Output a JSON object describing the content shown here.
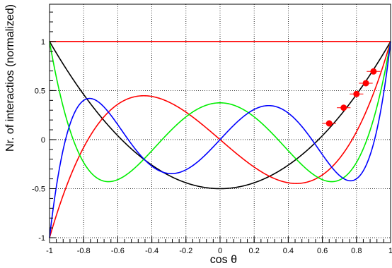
{
  "chart_data": {
    "type": "line",
    "title": "",
    "xlabel": "cos θ",
    "ylabel": "Nr. of interactios (normalized)",
    "xlim": [
      -1,
      1
    ],
    "ylim": [
      -1.05,
      1.38
    ],
    "grid": true,
    "x_ticks": [
      "-1",
      "-0.8",
      "-0.6",
      "-0.4",
      "-0.2",
      "0",
      "0.2",
      "0.4",
      "0.6",
      "0.8",
      "1"
    ],
    "y_ticks": [
      "-1",
      "-0.5",
      "0",
      "0.5",
      "1"
    ],
    "curves": [
      {
        "legendre_order": 0,
        "color": "#ff0000"
      },
      {
        "legendre_order": 2,
        "color": "#000000"
      },
      {
        "legendre_order": 3,
        "color": "#ff0000"
      },
      {
        "legendre_order": 4,
        "color": "#00ee00"
      },
      {
        "legendre_order": 5,
        "color": "#0000ff"
      }
    ],
    "points": {
      "color": "#ff0000",
      "x": [
        0.64,
        0.725,
        0.8,
        0.855,
        0.9
      ],
      "y": [
        0.165,
        0.325,
        0.465,
        0.575,
        0.695
      ],
      "xerr": [
        0.04,
        0.04,
        0.04,
        0.04,
        0.04
      ],
      "yerr": [
        0.015,
        0.015,
        0.015,
        0.015,
        0.015
      ]
    }
  }
}
